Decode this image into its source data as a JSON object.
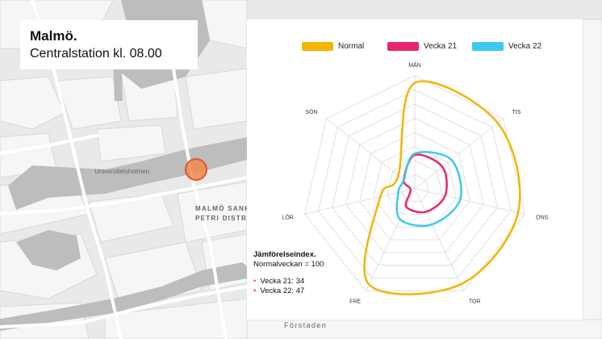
{
  "title": {
    "line1": "Malmö.",
    "line2": "Centralstation kl. 08.00"
  },
  "map": {
    "labels": {
      "universitetsholmen": "Universitetsholmen",
      "district_line1": "MALMÖ SANKT",
      "district_line2": "PETRI DISTRIKT",
      "forstaden": "Förstaden"
    },
    "colors": {
      "background": "#e9e9e9",
      "blocks": "#f6f6f6",
      "water": "#bdbdbd",
      "marker": "#f08a4b"
    }
  },
  "chart_data": {
    "type": "radar",
    "axes": [
      "MÅN",
      "TIS",
      "ONS",
      "TOR",
      "FRE",
      "LÖR",
      "SÖN"
    ],
    "rmax": 160,
    "grid_levels": 8,
    "series": [
      {
        "name": "Normal",
        "color": "#f5b400",
        "values": [
          150,
          150,
          150,
          150,
          150,
          50,
          30
        ]
      },
      {
        "name": "Vecka 21",
        "color": "#e6266e",
        "values": [
          48,
          50,
          44,
          36,
          28,
          6,
          20
        ]
      },
      {
        "name": "Vecka 22",
        "color": "#3cc9f0",
        "values": [
          50,
          66,
          66,
          56,
          48,
          24,
          20
        ]
      }
    ]
  },
  "index": {
    "title": "Jämförelseindex.",
    "subtitle": "Normalveckan = 100",
    "entries": [
      {
        "label": "Vecka 21: 34"
      },
      {
        "label": "Vecka 22: 47"
      }
    ]
  }
}
